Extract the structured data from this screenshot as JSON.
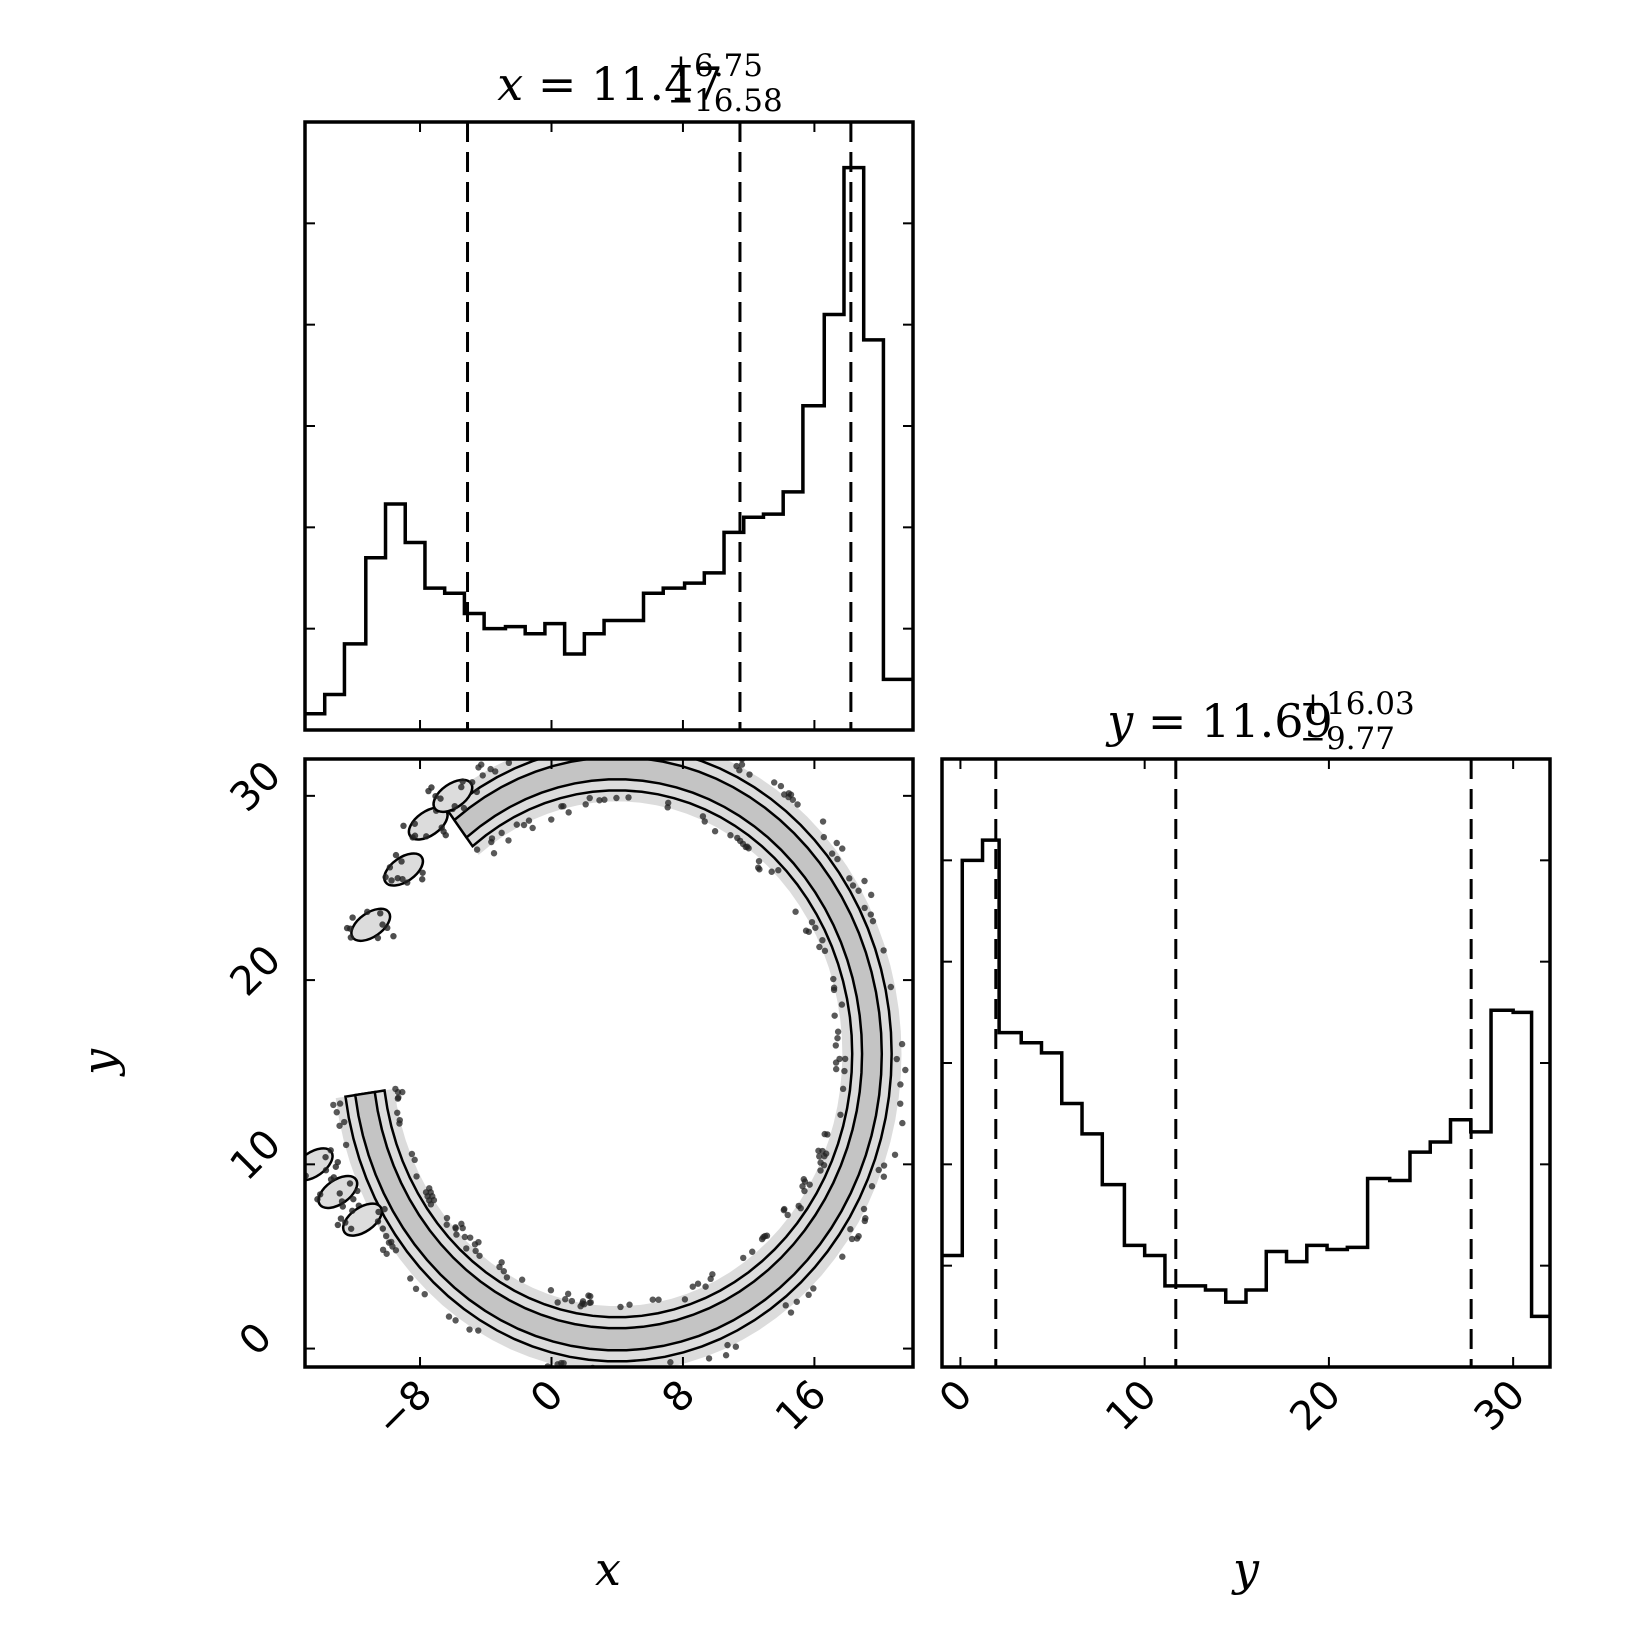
{
  "chart_data": [
    {
      "type": "bar",
      "panel": "histogram-x",
      "title": {
        "var": "x",
        "median": "11.47",
        "plus": "+6.75",
        "minus": "−16.58"
      },
      "xlim": [
        -15,
        22
      ],
      "bin_edges": [
        -15,
        -13.8,
        -12.6,
        -11.3,
        -10.1,
        -8.9,
        -7.7,
        -6.5,
        -5.3,
        -4.1,
        -2.8,
        -1.6,
        -0.4,
        0.8,
        2,
        3.2,
        4.4,
        5.6,
        6.8,
        8.1,
        9.3,
        10.5,
        11.7,
        12.9,
        14.1,
        15.3,
        16.6,
        17.8,
        19,
        20.2,
        21.4,
        22
      ],
      "values": [
        1.6,
        3.5,
        8.5,
        17,
        22.3,
        18.5,
        14,
        13.5,
        11.5,
        10,
        10.2,
        9.5,
        10.5,
        7.5,
        9.5,
        10.8,
        10.8,
        13.5,
        14,
        14.5,
        15.5,
        19.5,
        21,
        21.3,
        23.5,
        32,
        41,
        55.5,
        38.5,
        5,
        5
      ],
      "quantiles": [
        -5.11,
        11.47,
        18.22
      ],
      "ylim": [
        0,
        60
      ]
    },
    {
      "type": "heatmap",
      "panel": "joint-x-y",
      "xlabel": "x",
      "ylabel": "y",
      "xlim": [
        -15,
        22
      ],
      "ylim": [
        -1,
        32
      ],
      "xticks": [
        "−8",
        "0",
        "8",
        "16"
      ],
      "yticks": [
        "0",
        "10",
        "20",
        "30"
      ],
      "ring": {
        "cx": 4,
        "cy": 16,
        "r": 15.5,
        "gap_deg": [
          128,
          188
        ]
      },
      "tails": [
        {
          "x": [
            -11,
            -9,
            -7.5,
            -6
          ],
          "y": [
            23,
            26,
            28.5,
            30
          ]
        },
        {
          "x": [
            -14.5,
            -13,
            -11.5
          ],
          "y": [
            10,
            8.5,
            7
          ]
        }
      ]
    },
    {
      "type": "bar",
      "panel": "histogram-y",
      "title": {
        "var": "y",
        "median": "11.69",
        "plus": "+16.03",
        "minus": "−9.77"
      },
      "xlabel": "y",
      "xlim": [
        -1,
        32
      ],
      "xticks": [
        "0",
        "10",
        "20",
        "30"
      ],
      "bin_edges": [
        -1,
        0.1,
        1.2,
        2.1,
        3.3,
        4.4,
        5.5,
        6.6,
        7.7,
        8.9,
        10,
        11.1,
        12.2,
        13.3,
        14.4,
        15.5,
        16.6,
        17.7,
        18.8,
        19.9,
        21,
        22.1,
        23.3,
        24.4,
        25.5,
        26.6,
        27.7,
        28.8,
        30,
        31,
        32
      ],
      "values": [
        5.5,
        25,
        26,
        16.5,
        16,
        15.5,
        13,
        11.5,
        9,
        6,
        5.5,
        4,
        4,
        3.8,
        3.2,
        3.8,
        5.7,
        5.2,
        6,
        5.8,
        5.9,
        9.3,
        9.2,
        10.6,
        11.1,
        12.2,
        11.6,
        17.6,
        17.5,
        2.5
      ],
      "quantiles": [
        1.92,
        11.69,
        27.72
      ],
      "ylim": [
        0,
        30
      ]
    }
  ]
}
